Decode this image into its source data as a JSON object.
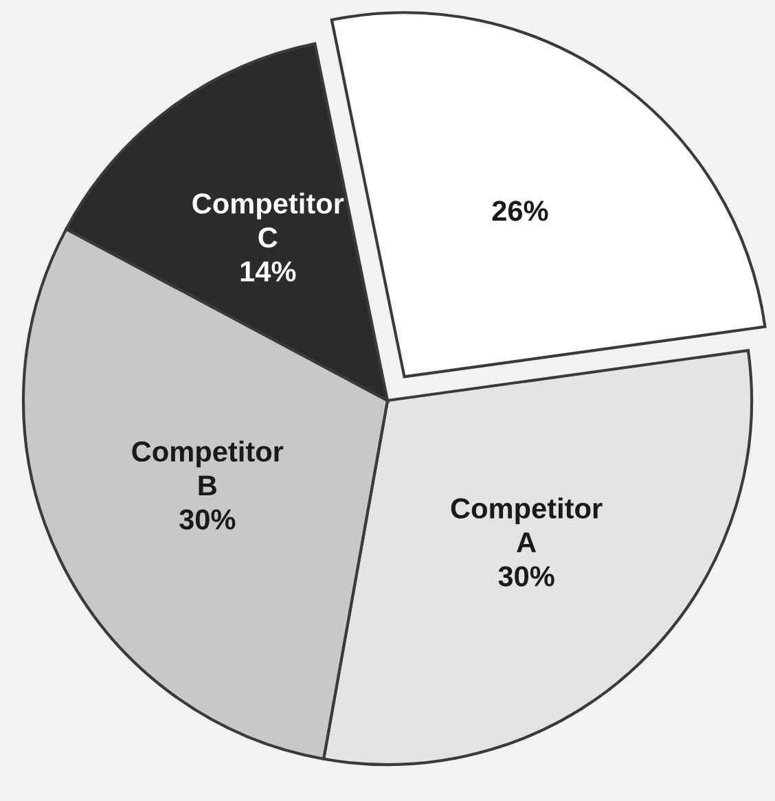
{
  "chart_data": {
    "type": "pie",
    "categories": [
      null,
      "Competitor\nA",
      "Competitor\nB",
      "Competitor\nC"
    ],
    "values": [
      26,
      30,
      30,
      14
    ],
    "colors": [
      "#ffffff",
      "#e4e4e4",
      "#c8c8c8",
      "#2b2b2b"
    ],
    "value_labels": [
      "26%",
      "30%",
      "30%",
      "14%"
    ]
  }
}
